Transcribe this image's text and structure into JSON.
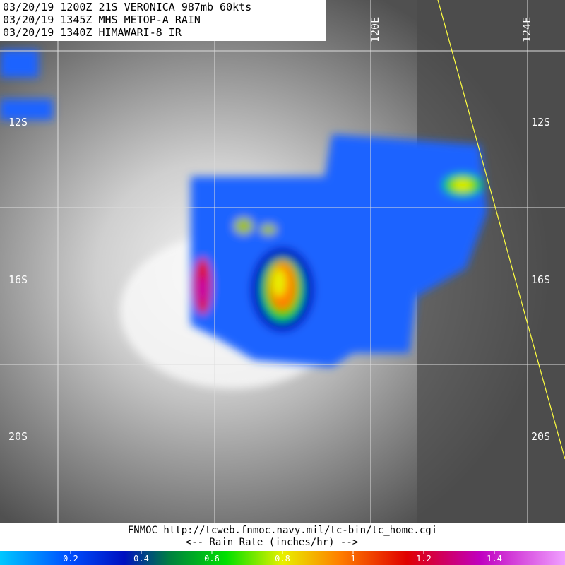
{
  "header": {
    "lines": [
      "03/20/19 1200Z  21S VERONICA 987mb 60kts",
      "03/20/19 1345Z  MHS METOP-A RAIN",
      "03/20/19 1340Z  HIMAWARI-8 IR"
    ]
  },
  "grid_labels": {
    "lat": [
      "12S",
      "16S",
      "20S"
    ],
    "lon": [
      "120E",
      "124E"
    ]
  },
  "footer": {
    "source": "FNMOC  http://tcweb.fnmoc.navy.mil/tc-bin/tc_home.cgi",
    "caption": "<--  Rain Rate (inches/hr)  -->"
  },
  "colorbar": {
    "range": [
      0,
      1.6
    ],
    "ticks": [
      0.2,
      0.4,
      0.6,
      0.8,
      1,
      1.2,
      1.4
    ]
  }
}
